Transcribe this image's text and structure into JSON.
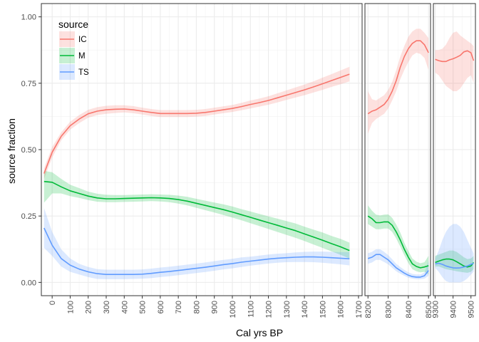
{
  "chart_data": {
    "type": "line",
    "ylabel": "source fraction",
    "xlabel": "Cal yrs BP",
    "ylim": [
      -0.05,
      1.05
    ],
    "yticks": [
      "0.00",
      "0.25",
      "0.50",
      "0.75",
      "1.00"
    ],
    "ytick_values": [
      0,
      0.25,
      0.5,
      0.75,
      1.0
    ],
    "grid": true,
    "legend": {
      "title": "source",
      "placement": "top-left",
      "entries": [
        "IC",
        "M",
        "TS"
      ]
    },
    "colors": {
      "IC": "#F8766D",
      "M": "#00BA38",
      "TS": "#619CFF"
    },
    "panels": [
      {
        "xlim": [
          -60,
          1720
        ],
        "xticks": [
          "0",
          "100",
          "200",
          "300",
          "400",
          "500",
          "600",
          "700",
          "800",
          "900",
          "1000",
          "1100",
          "1200",
          "1300",
          "1400",
          "1500",
          "1600",
          "1700"
        ],
        "xtick_values": [
          0,
          100,
          200,
          300,
          400,
          500,
          600,
          700,
          800,
          900,
          1000,
          1100,
          1200,
          1300,
          1400,
          1500,
          1600,
          1700
        ],
        "series": [
          {
            "name": "IC",
            "x": [
              -45,
              0,
              50,
              100,
              150,
              200,
              250,
              300,
              350,
              400,
              450,
              500,
              550,
              600,
              650,
              700,
              750,
              800,
              850,
              900,
              950,
              1000,
              1050,
              1100,
              1150,
              1200,
              1250,
              1300,
              1350,
              1400,
              1450,
              1500,
              1550,
              1600,
              1650
            ],
            "y": [
              0.41,
              0.49,
              0.55,
              0.59,
              0.615,
              0.635,
              0.645,
              0.65,
              0.652,
              0.653,
              0.65,
              0.645,
              0.64,
              0.636,
              0.636,
              0.636,
              0.636,
              0.637,
              0.64,
              0.645,
              0.65,
              0.655,
              0.662,
              0.67,
              0.677,
              0.685,
              0.695,
              0.705,
              0.715,
              0.725,
              0.736,
              0.748,
              0.76,
              0.772,
              0.784
            ],
            "lower": [
              0.39,
              0.47,
              0.535,
              0.575,
              0.6,
              0.62,
              0.63,
              0.635,
              0.638,
              0.64,
              0.637,
              0.632,
              0.627,
              0.623,
              0.623,
              0.623,
              0.623,
              0.624,
              0.627,
              0.632,
              0.637,
              0.642,
              0.648,
              0.655,
              0.662,
              0.669,
              0.678,
              0.687,
              0.696,
              0.705,
              0.715,
              0.725,
              0.736,
              0.746,
              0.757
            ],
            "upper": [
              0.43,
              0.51,
              0.565,
              0.605,
              0.63,
              0.65,
              0.66,
              0.665,
              0.667,
              0.667,
              0.664,
              0.658,
              0.653,
              0.649,
              0.649,
              0.649,
              0.649,
              0.65,
              0.653,
              0.658,
              0.663,
              0.668,
              0.676,
              0.685,
              0.692,
              0.701,
              0.712,
              0.723,
              0.734,
              0.745,
              0.757,
              0.771,
              0.784,
              0.798,
              0.812
            ]
          },
          {
            "name": "M",
            "x": [
              -45,
              0,
              50,
              100,
              150,
              200,
              250,
              300,
              350,
              400,
              450,
              500,
              550,
              600,
              650,
              700,
              750,
              800,
              850,
              900,
              950,
              1000,
              1050,
              1100,
              1150,
              1200,
              1250,
              1300,
              1350,
              1400,
              1450,
              1500,
              1550,
              1600,
              1650
            ],
            "y": [
              0.38,
              0.377,
              0.36,
              0.345,
              0.335,
              0.325,
              0.318,
              0.315,
              0.315,
              0.316,
              0.317,
              0.318,
              0.319,
              0.318,
              0.316,
              0.312,
              0.306,
              0.298,
              0.29,
              0.282,
              0.274,
              0.265,
              0.255,
              0.245,
              0.235,
              0.225,
              0.215,
              0.205,
              0.195,
              0.183,
              0.171,
              0.159,
              0.146,
              0.134,
              0.12
            ],
            "lower": [
              0.3,
              0.335,
              0.335,
              0.325,
              0.318,
              0.31,
              0.304,
              0.302,
              0.302,
              0.303,
              0.304,
              0.305,
              0.306,
              0.305,
              0.302,
              0.297,
              0.29,
              0.281,
              0.272,
              0.263,
              0.254,
              0.244,
              0.234,
              0.223,
              0.212,
              0.201,
              0.19,
              0.179,
              0.168,
              0.156,
              0.143,
              0.13,
              0.117,
              0.104,
              0.09
            ],
            "upper": [
              0.42,
              0.415,
              0.39,
              0.368,
              0.355,
              0.342,
              0.334,
              0.33,
              0.329,
              0.329,
              0.33,
              0.331,
              0.332,
              0.331,
              0.33,
              0.327,
              0.322,
              0.315,
              0.308,
              0.301,
              0.294,
              0.286,
              0.276,
              0.267,
              0.258,
              0.249,
              0.24,
              0.231,
              0.222,
              0.21,
              0.199,
              0.188,
              0.175,
              0.164,
              0.15
            ]
          },
          {
            "name": "TS",
            "x": [
              -45,
              0,
              50,
              100,
              150,
              200,
              250,
              300,
              350,
              400,
              450,
              500,
              550,
              600,
              650,
              700,
              750,
              800,
              850,
              900,
              950,
              1000,
              1050,
              1100,
              1150,
              1200,
              1250,
              1300,
              1350,
              1400,
              1450,
              1500,
              1550,
              1600,
              1650
            ],
            "y": [
              0.205,
              0.14,
              0.09,
              0.065,
              0.05,
              0.04,
              0.033,
              0.03,
              0.03,
              0.03,
              0.03,
              0.031,
              0.034,
              0.038,
              0.041,
              0.045,
              0.049,
              0.053,
              0.057,
              0.062,
              0.067,
              0.071,
              0.076,
              0.08,
              0.084,
              0.088,
              0.091,
              0.093,
              0.095,
              0.096,
              0.096,
              0.095,
              0.093,
              0.091,
              0.089
            ],
            "lower": [
              0.13,
              0.1,
              0.06,
              0.04,
              0.03,
              0.02,
              0.013,
              0.012,
              0.012,
              0.012,
              0.013,
              0.014,
              0.016,
              0.02,
              0.023,
              0.027,
              0.031,
              0.035,
              0.039,
              0.044,
              0.049,
              0.053,
              0.058,
              0.063,
              0.067,
              0.071,
              0.074,
              0.076,
              0.077,
              0.077,
              0.076,
              0.074,
              0.071,
              0.068,
              0.064
            ],
            "upper": [
              0.28,
              0.19,
              0.125,
              0.09,
              0.07,
              0.058,
              0.05,
              0.048,
              0.048,
              0.048,
              0.048,
              0.049,
              0.052,
              0.056,
              0.059,
              0.063,
              0.067,
              0.071,
              0.075,
              0.08,
              0.085,
              0.089,
              0.094,
              0.097,
              0.101,
              0.105,
              0.108,
              0.11,
              0.113,
              0.115,
              0.116,
              0.116,
              0.115,
              0.114,
              0.114
            ]
          }
        ]
      },
      {
        "xlim": [
          8185,
          8510
        ],
        "xticks": [
          "8200",
          "8300",
          "8400",
          "8500"
        ],
        "xtick_values": [
          8200,
          8300,
          8400,
          8500
        ],
        "series": [
          {
            "name": "IC",
            "x": [
              8200,
              8220,
              8240,
              8260,
              8280,
              8300,
              8320,
              8340,
              8360,
              8380,
              8400,
              8420,
              8440,
              8460,
              8480,
              8500
            ],
            "y": [
              0.635,
              0.645,
              0.65,
              0.66,
              0.67,
              0.69,
              0.72,
              0.76,
              0.81,
              0.85,
              0.88,
              0.9,
              0.91,
              0.91,
              0.895,
              0.865
            ],
            "lower": [
              0.56,
              0.6,
              0.615,
              0.625,
              0.635,
              0.655,
              0.685,
              0.72,
              0.765,
              0.8,
              0.83,
              0.855,
              0.865,
              0.86,
              0.845,
              0.8
            ],
            "upper": [
              0.72,
              0.69,
              0.685,
              0.695,
              0.705,
              0.725,
              0.755,
              0.8,
              0.85,
              0.89,
              0.925,
              0.945,
              0.955,
              0.955,
              0.94,
              0.92
            ]
          },
          {
            "name": "M",
            "x": [
              8200,
              8220,
              8240,
              8260,
              8280,
              8300,
              8320,
              8340,
              8360,
              8380,
              8400,
              8420,
              8440,
              8460,
              8480,
              8500
            ],
            "y": [
              0.25,
              0.24,
              0.225,
              0.225,
              0.228,
              0.228,
              0.215,
              0.19,
              0.16,
              0.125,
              0.095,
              0.07,
              0.06,
              0.055,
              0.058,
              0.063
            ],
            "lower": [
              0.22,
              0.21,
              0.2,
              0.2,
              0.203,
              0.203,
              0.19,
              0.165,
              0.135,
              0.102,
              0.073,
              0.05,
              0.042,
              0.038,
              0.04,
              0.03
            ],
            "upper": [
              0.29,
              0.27,
              0.255,
              0.252,
              0.255,
              0.256,
              0.243,
              0.218,
              0.188,
              0.15,
              0.118,
              0.09,
              0.078,
              0.072,
              0.076,
              0.1
            ]
          },
          {
            "name": "TS",
            "x": [
              8200,
              8220,
              8240,
              8260,
              8280,
              8300,
              8320,
              8340,
              8360,
              8380,
              8400,
              8420,
              8440,
              8460,
              8480,
              8500
            ],
            "y": [
              0.09,
              0.095,
              0.105,
              0.105,
              0.095,
              0.085,
              0.07,
              0.055,
              0.045,
              0.035,
              0.027,
              0.022,
              0.02,
              0.02,
              0.025,
              0.045
            ],
            "lower": [
              0.07,
              0.075,
              0.085,
              0.085,
              0.077,
              0.068,
              0.055,
              0.042,
              0.033,
              0.025,
              0.018,
              0.014,
              0.012,
              0.012,
              0.014,
              0.025
            ],
            "upper": [
              0.11,
              0.115,
              0.125,
              0.125,
              0.115,
              0.103,
              0.087,
              0.07,
              0.058,
              0.047,
              0.038,
              0.032,
              0.03,
              0.03,
              0.038,
              0.08
            ]
          }
        ]
      },
      {
        "xlim": [
          9290,
          9525
        ],
        "xticks": [
          "9300",
          "9400",
          "9500"
        ],
        "xtick_values": [
          9300,
          9400,
          9500
        ],
        "series": [
          {
            "name": "IC",
            "x": [
              9300,
              9320,
              9340,
              9360,
              9380,
              9400,
              9420,
              9440,
              9460,
              9480,
              9500,
              9515
            ],
            "y": [
              0.84,
              0.835,
              0.832,
              0.832,
              0.838,
              0.842,
              0.848,
              0.855,
              0.868,
              0.872,
              0.865,
              0.835
            ],
            "lower": [
              0.79,
              0.78,
              0.76,
              0.74,
              0.73,
              0.72,
              0.72,
              0.73,
              0.75,
              0.77,
              0.78,
              0.75
            ],
            "upper": [
              0.875,
              0.875,
              0.88,
              0.895,
              0.92,
              0.94,
              0.945,
              0.93,
              0.92,
              0.91,
              0.9,
              0.89
            ]
          },
          {
            "name": "M",
            "x": [
              9300,
              9320,
              9340,
              9360,
              9380,
              9400,
              9420,
              9440,
              9460,
              9480,
              9500,
              9515
            ],
            "y": [
              0.075,
              0.08,
              0.085,
              0.088,
              0.088,
              0.085,
              0.078,
              0.07,
              0.062,
              0.058,
              0.062,
              0.075
            ],
            "lower": [
              0.06,
              0.06,
              0.055,
              0.05,
              0.047,
              0.045,
              0.042,
              0.04,
              0.038,
              0.036,
              0.04,
              0.05
            ],
            "upper": [
              0.1,
              0.105,
              0.11,
              0.115,
              0.12,
              0.12,
              0.115,
              0.105,
              0.095,
              0.088,
              0.09,
              0.1
            ]
          },
          {
            "name": "TS",
            "x": [
              9300,
              9320,
              9340,
              9360,
              9380,
              9400,
              9420,
              9440,
              9460,
              9480,
              9500,
              9515
            ],
            "y": [
              0.07,
              0.072,
              0.068,
              0.062,
              0.058,
              0.055,
              0.054,
              0.055,
              0.058,
              0.062,
              0.068,
              0.072
            ],
            "lower": [
              0.055,
              0.04,
              0.02,
              0.005,
              0.0,
              0.0,
              0.0,
              0.0,
              0.005,
              0.015,
              0.03,
              0.04
            ],
            "upper": [
              0.09,
              0.12,
              0.16,
              0.19,
              0.21,
              0.22,
              0.22,
              0.21,
              0.19,
              0.16,
              0.13,
              0.11
            ]
          }
        ]
      }
    ]
  }
}
